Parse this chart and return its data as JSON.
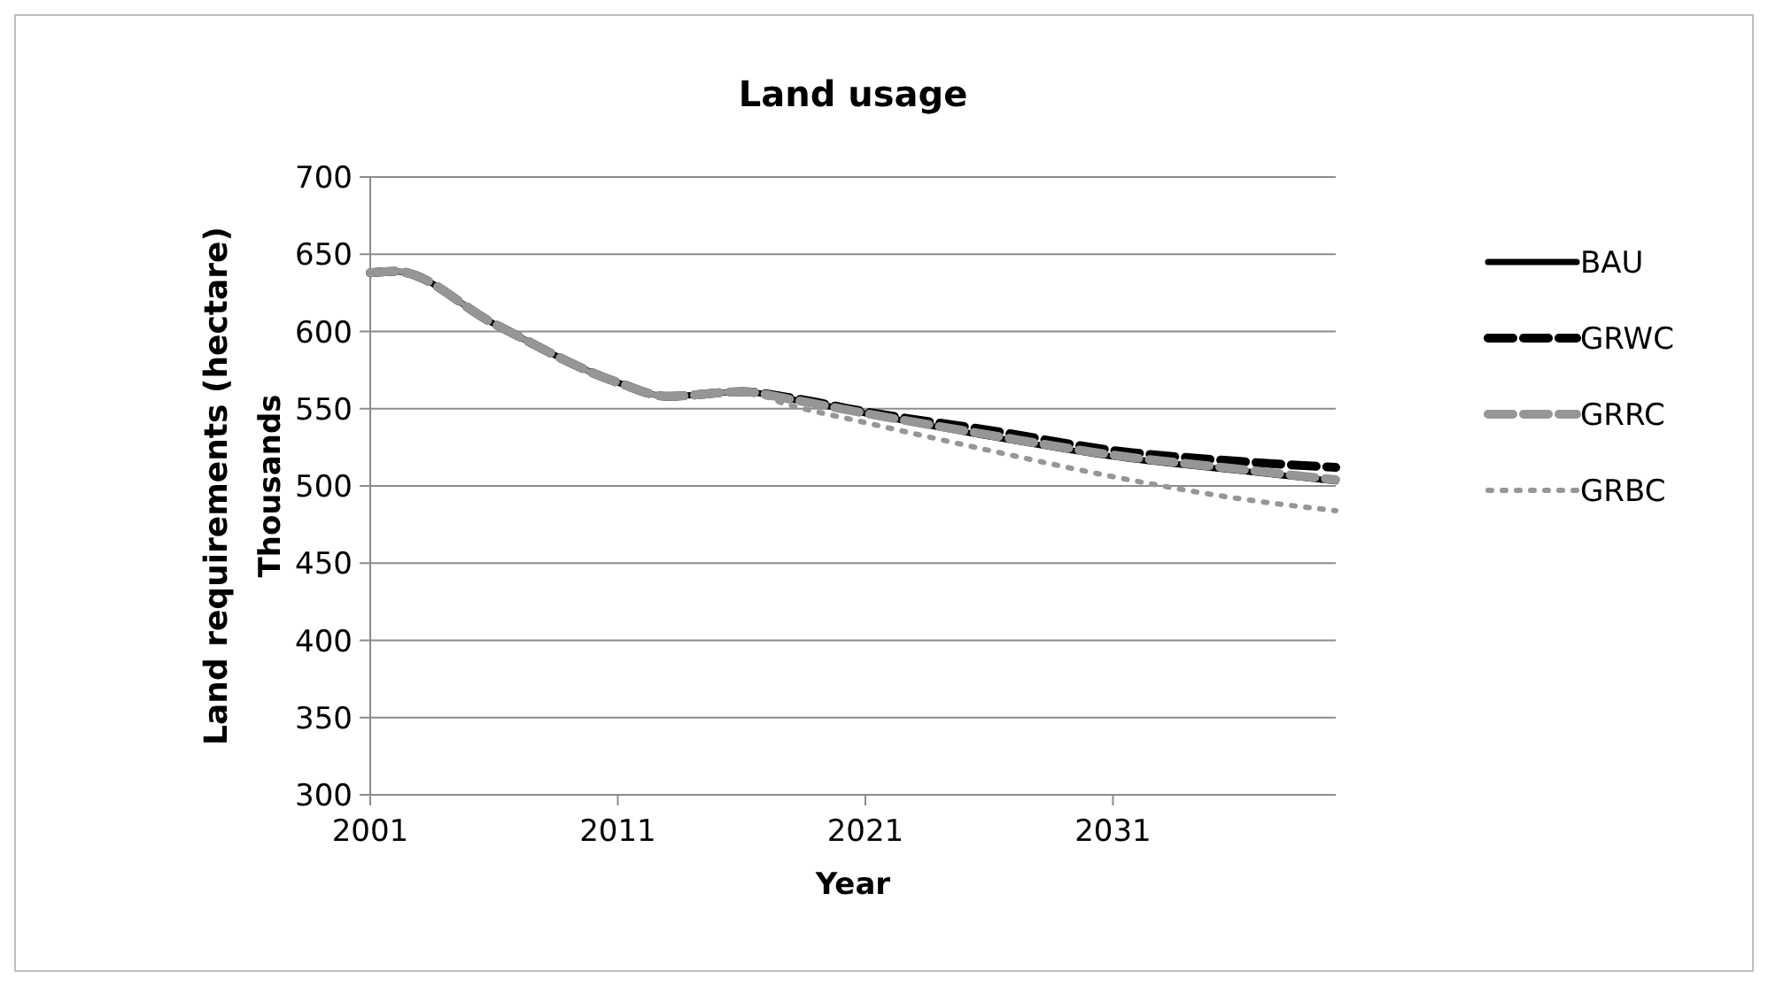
{
  "chart_data": {
    "type": "line",
    "title": "Land usage",
    "xlabel": "Year",
    "ylabel": "Land requirements (hectare)",
    "y2label": "Thousands",
    "x": [
      2001,
      2002,
      2006,
      2011,
      2013,
      2016,
      2018,
      2021,
      2026,
      2031,
      2036,
      2040
    ],
    "series": [
      {
        "name": "BAU",
        "color": "#000000",
        "line_style": "solid",
        "values": [
          638,
          639,
          605,
          567,
          558,
          561,
          556,
          547,
          532,
          519,
          510,
          503
        ]
      },
      {
        "name": "GRWC",
        "color": "#000000",
        "line_style": "dashed",
        "values": [
          638,
          639,
          605,
          567,
          558,
          561,
          557,
          548,
          536,
          523,
          516,
          512
        ]
      },
      {
        "name": "GRRC",
        "color": "#969696",
        "line_style": "dashed",
        "values": [
          638,
          639,
          605,
          567,
          558,
          561,
          556,
          547,
          533,
          520,
          511,
          504
        ]
      },
      {
        "name": "GRBC",
        "color": "#969696",
        "line_style": "dotted",
        "values": [
          638,
          639,
          605,
          567,
          558,
          561,
          552,
          541,
          523,
          506,
          492,
          484
        ]
      }
    ],
    "xlim": [
      2001,
      2040
    ],
    "xticks": [
      2001,
      2011,
      2021,
      2031
    ],
    "ylim": [
      300,
      700
    ],
    "yticks": [
      300,
      350,
      400,
      450,
      500,
      550,
      600,
      650,
      700
    ],
    "grid": "y",
    "legend": "right"
  }
}
